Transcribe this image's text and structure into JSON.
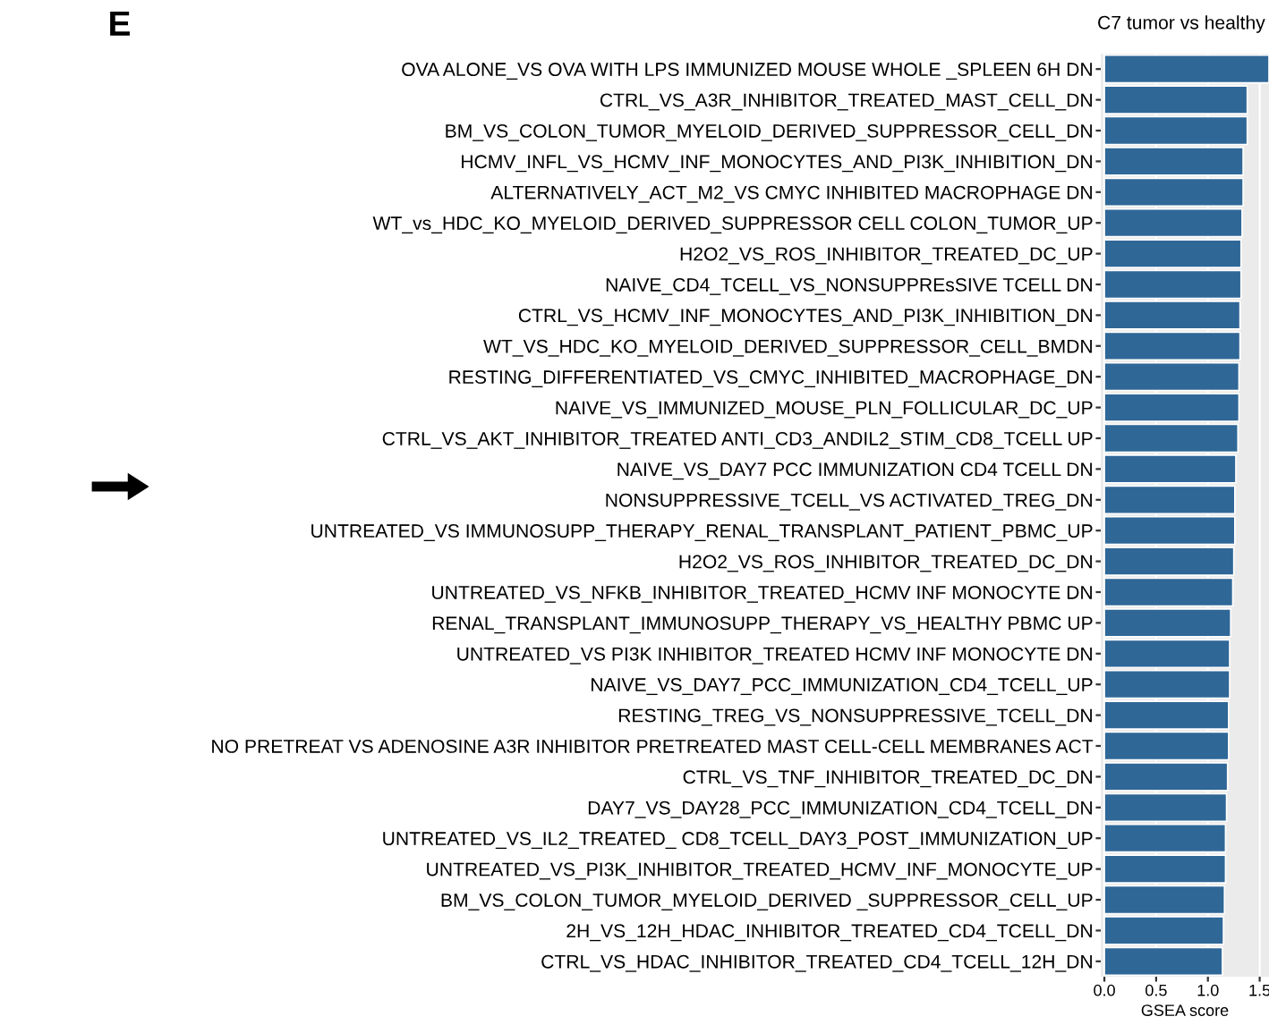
{
  "chart_data": {
    "type": "bar",
    "orientation": "horizontal",
    "title": "C7 tumor vs healthy",
    "xlabel": "GSEA score",
    "annotations": [
      "E"
    ],
    "categories": [
      "OVA ALONE_VS OVA WITH LPS IMMUNIZED MOUSE WHOLE _SPLEEN 6H DN",
      "CTRL_VS_A3R_INHIBITOR_TREATED_MAST_CELL_DN",
      "BM_VS_COLON_TUMOR_MYELOID_DERIVED_SUPPRESSOR_CELL_DN",
      "HCMV_INFL_VS_HCMV_INF_MONOCYTES_AND_PI3K_INHIBITION_DN",
      "ALTERNATIVELY_ACT_M2_VS CMYC INHIBITED MACROPHAGE DN",
      "WT_vs_HDC_KO_MYELOID_DERIVED_SUPPRESSOR CELL COLON_TUMOR_UP",
      "H2O2_VS_ROS_INHIBITOR_TREATED_DC_UP",
      "NAIVE_CD4_TCELL_VS_NONSUPPREsSIVE TCELL DN",
      "CTRL_VS_HCMV_INF_MONOCYTES_AND_PI3K_INHIBITION_DN",
      "WT_VS_HDC_KO_MYELOID_DERIVED_SUPPRESSOR_CELL_BMDN",
      "RESTING_DIFFERENTIATED_VS_CMYC_INHIBITED_MACROPHAGE_DN",
      "NAIVE_VS_IMMUNIZED_MOUSE_PLN_FOLLICULAR_DC_UP",
      "CTRL_VS_AKT_INHIBITOR_TREATED ANTI_CD3_ANDIL2_STIM_CD8_TCELL UP",
      "NAIVE_VS_DAY7 PCC IMMUNIZATION CD4 TCELL DN",
      "NONSUPPRESSIVE_TCELL_VS ACTIVATED_TREG_DN",
      "UNTREATED_VS IMMUNOSUPP_THERAPY_RENAL_TRANSPLANT_PATIENT_PBMC_UP",
      "H2O2_VS_ROS_INHIBITOR_TREATED_DC_DN",
      "UNTREATED_VS_NFKB_INHIBITOR_TREATED_HCMV INF MONOCYTE DN",
      "RENAL_TRANSPLANT_IMMUNOSUPP_THERAPY_VS_HEALTHY PBMC UP",
      "UNTREATED_VS PI3K INHIBITOR_TREATED HCMV INF MONOCYTE DN",
      "NAIVE_VS_DAY7_PCC_IMMUNIZATION_CD4_TCELL_UP",
      "RESTING_TREG_VS_NONSUPPRESSIVE_TCELL_DN",
      "NO PRETREAT VS ADENOSINE A3R INHIBITOR PRETREATED MAST CELL-CELL MEMBRANES ACT",
      "CTRL_VS_TNF_INHIBITOR_TREATED_DC_DN",
      "DAY7_VS_DAY28_PCC_IMMUNIZATION_CD4_TCELL_DN",
      "UNTREATED_VS_IL2_TREATED_ CD8_TCELL_DAY3_POST_IMMUNIZATION_UP",
      "UNTREATED_VS_PI3K_INHIBITOR_TREATED_HCMV_INF_MONOCYTE_UP",
      "BM_VS_COLON_TUMOR_MYELOID_DERIVED _SUPPRESSOR_CELL_UP",
      "2H_VS_12H_HDAC_INHIBITOR_TREATED_CD4_TCELL_DN",
      "CTRL_VS_HDAC_INHIBITOR_TREATED_CD4_TCELL_12H_DN"
    ],
    "values": [
      1.59,
      1.38,
      1.38,
      1.34,
      1.34,
      1.33,
      1.32,
      1.32,
      1.31,
      1.31,
      1.3,
      1.3,
      1.29,
      1.27,
      1.26,
      1.26,
      1.25,
      1.24,
      1.22,
      1.21,
      1.21,
      1.2,
      1.2,
      1.19,
      1.18,
      1.17,
      1.17,
      1.16,
      1.15,
      1.14
    ],
    "color": "#2f6797",
    "xlim": [
      -0.035,
      1.59
    ],
    "xticks": [
      {
        "value": 0,
        "label": "0.0"
      },
      {
        "value": 0.5,
        "label": "0.5"
      },
      {
        "value": 1,
        "label": "1.0"
      },
      {
        "value": 1.5,
        "label": "1.5"
      }
    ],
    "grid": "x"
  }
}
